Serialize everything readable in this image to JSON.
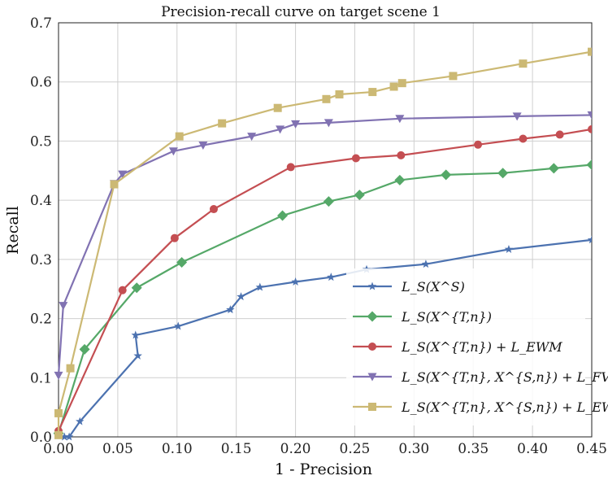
{
  "chart_data": {
    "type": "line",
    "title": "Precision-recall curve on target scene 1",
    "xlabel": "1 - Precision",
    "ylabel": "Recall",
    "xlim": [
      0.0,
      0.45
    ],
    "ylim": [
      0.0,
      0.7
    ],
    "xticks": [
      "0.00",
      "0.05",
      "0.10",
      "0.15",
      "0.20",
      "0.25",
      "0.30",
      "0.35",
      "0.40",
      "0.45"
    ],
    "yticks": [
      "0.0",
      "0.1",
      "0.2",
      "0.3",
      "0.4",
      "0.5",
      "0.6",
      "0.7"
    ],
    "grid": true,
    "legend_position": "bottom-right",
    "series": [
      {
        "name": "L_S(X^S)",
        "color": "#4c72b0",
        "marker": "star",
        "points": [
          [
            0.005,
            0.0
          ],
          [
            0.009,
            0.0
          ],
          [
            0.018,
            0.026
          ],
          [
            0.067,
            0.137
          ],
          [
            0.065,
            0.172
          ],
          [
            0.101,
            0.187
          ],
          [
            0.145,
            0.215
          ],
          [
            0.154,
            0.237
          ],
          [
            0.17,
            0.253
          ],
          [
            0.2,
            0.262
          ],
          [
            0.23,
            0.27
          ],
          [
            0.26,
            0.283
          ],
          [
            0.31,
            0.292
          ],
          [
            0.38,
            0.317
          ],
          [
            0.45,
            0.333
          ]
        ]
      },
      {
        "name": "L_S(X^{T,n})",
        "color": "#55a868",
        "marker": "diamond",
        "points": [
          [
            0.0,
            0.006
          ],
          [
            0.022,
            0.148
          ],
          [
            0.066,
            0.252
          ],
          [
            0.104,
            0.295
          ],
          [
            0.189,
            0.374
          ],
          [
            0.228,
            0.398
          ],
          [
            0.254,
            0.409
          ],
          [
            0.288,
            0.434
          ],
          [
            0.327,
            0.443
          ],
          [
            0.375,
            0.446
          ],
          [
            0.418,
            0.454
          ],
          [
            0.45,
            0.46
          ]
        ]
      },
      {
        "name": "L_S(X^{T,n}) + L_EWM",
        "color": "#c44e52",
        "marker": "circle",
        "points": [
          [
            0.0,
            0.01
          ],
          [
            0.054,
            0.248
          ],
          [
            0.098,
            0.336
          ],
          [
            0.131,
            0.385
          ],
          [
            0.196,
            0.456
          ],
          [
            0.251,
            0.471
          ],
          [
            0.289,
            0.476
          ],
          [
            0.354,
            0.494
          ],
          [
            0.392,
            0.504
          ],
          [
            0.423,
            0.511
          ],
          [
            0.45,
            0.52
          ]
        ]
      },
      {
        "name": "L_S(X^{T,n}, X^{S,n}) + L_FV",
        "color": "#8172b2",
        "marker": "triangle-down",
        "points": [
          [
            0.0,
            0.104
          ],
          [
            0.004,
            0.222
          ],
          [
            0.047,
            0.428
          ],
          [
            0.054,
            0.444
          ],
          [
            0.097,
            0.483
          ],
          [
            0.122,
            0.493
          ],
          [
            0.163,
            0.508
          ],
          [
            0.187,
            0.52
          ],
          [
            0.2,
            0.529
          ],
          [
            0.228,
            0.531
          ],
          [
            0.288,
            0.538
          ],
          [
            0.387,
            0.542
          ],
          [
            0.45,
            0.544
          ]
        ]
      },
      {
        "name": "L_S(X^{T,n}, X^{S,n}) + L_EWM",
        "color": "#ccb974",
        "marker": "square",
        "points": [
          [
            0.0,
            0.003
          ],
          [
            0.0,
            0.04
          ],
          [
            0.01,
            0.116
          ],
          [
            0.047,
            0.427
          ],
          [
            0.102,
            0.508
          ],
          [
            0.138,
            0.53
          ],
          [
            0.185,
            0.556
          ],
          [
            0.226,
            0.571
          ],
          [
            0.237,
            0.579
          ],
          [
            0.265,
            0.583
          ],
          [
            0.283,
            0.592
          ],
          [
            0.29,
            0.598
          ],
          [
            0.333,
            0.61
          ],
          [
            0.392,
            0.631
          ],
          [
            0.45,
            0.651
          ]
        ]
      }
    ]
  }
}
